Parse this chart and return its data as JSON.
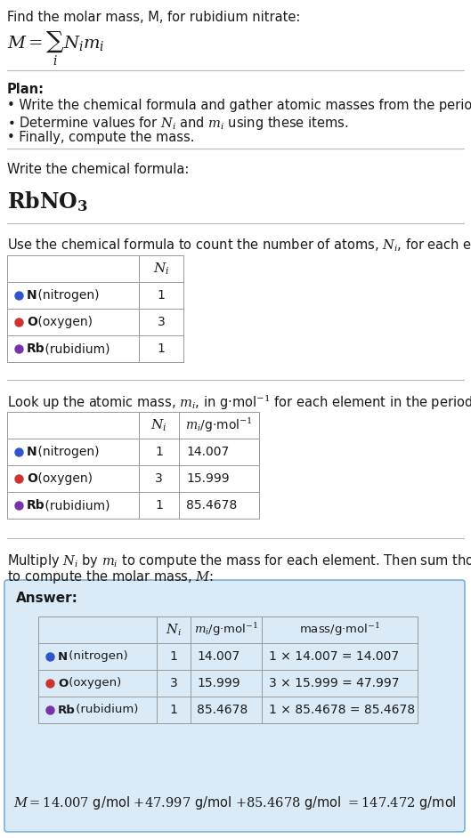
{
  "bg_color": "#ffffff",
  "answer_bg_color": "#daeaf7",
  "answer_border_color": "#7ab0d4",
  "table_border_color": "#999999",
  "text_color": "#1a1a1a",
  "elements": [
    "N",
    "O",
    "Rb"
  ],
  "element_names": [
    "nitrogen",
    "oxygen",
    "rubidium"
  ],
  "element_colors": [
    "#3355cc",
    "#cc3333",
    "#7733aa"
  ],
  "N_i": [
    1,
    3,
    1
  ],
  "m_i": [
    "14.007",
    "15.999",
    "85.4678"
  ],
  "mass_expr": [
    "1 × 14.007 = 14.007",
    "3 × 15.999 = 47.997",
    "1 × 85.4678 = 85.4678"
  ]
}
